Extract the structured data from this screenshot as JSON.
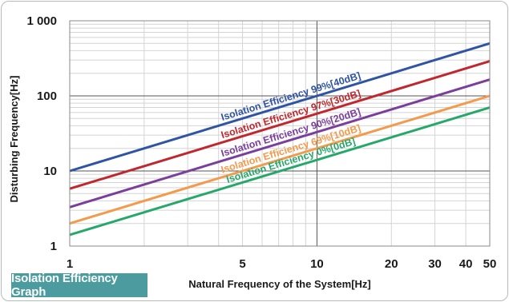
{
  "badge_label": "Isolation Efficiency Graph",
  "chart_data": {
    "type": "line",
    "title": "",
    "xlabel": "Natural Frequency of the System[Hz]",
    "ylabel": "Disturbing Frequency[Hz]",
    "xscale": "log",
    "yscale": "log",
    "xlim": [
      1,
      50
    ],
    "ylim": [
      1,
      1000
    ],
    "grid": true,
    "x_ticks": [
      {
        "value": 1,
        "label": "1"
      },
      {
        "value": 5,
        "label": "5"
      },
      {
        "value": 10,
        "label": "10"
      },
      {
        "value": 20,
        "label": "20"
      },
      {
        "value": 30,
        "label": "30"
      },
      {
        "value": 40,
        "label": "40"
      },
      {
        "value": 50,
        "label": "50"
      }
    ],
    "y_ticks": [
      {
        "value": 1,
        "label": "1"
      },
      {
        "value": 10,
        "label": "10"
      },
      {
        "value": 100,
        "label": "100"
      },
      {
        "value": 1000,
        "label": "1 000"
      }
    ],
    "series": [
      {
        "name": "Isolation Efficiency 99%[40dB]",
        "color": "#2e54a3",
        "x": [
          1,
          50
        ],
        "y": [
          10,
          500
        ]
      },
      {
        "name": "Isolation Efficiency 97%[30dB]",
        "color": "#c0282e",
        "x": [
          1,
          50
        ],
        "y": [
          5.8,
          290
        ]
      },
      {
        "name": "Isolation Efficiency 90%[20dB]",
        "color": "#7a3e9d",
        "x": [
          1,
          50
        ],
        "y": [
          3.3,
          165
        ]
      },
      {
        "name": "Isolation Efficiency 69%[10dB]",
        "color": "#f39a4c",
        "x": [
          1,
          50
        ],
        "y": [
          2.0,
          100
        ]
      },
      {
        "name": "Isolation Efficiency 0%[0dB]",
        "color": "#27a86b",
        "x": [
          1,
          50
        ],
        "y": [
          1.41,
          70
        ]
      }
    ]
  }
}
